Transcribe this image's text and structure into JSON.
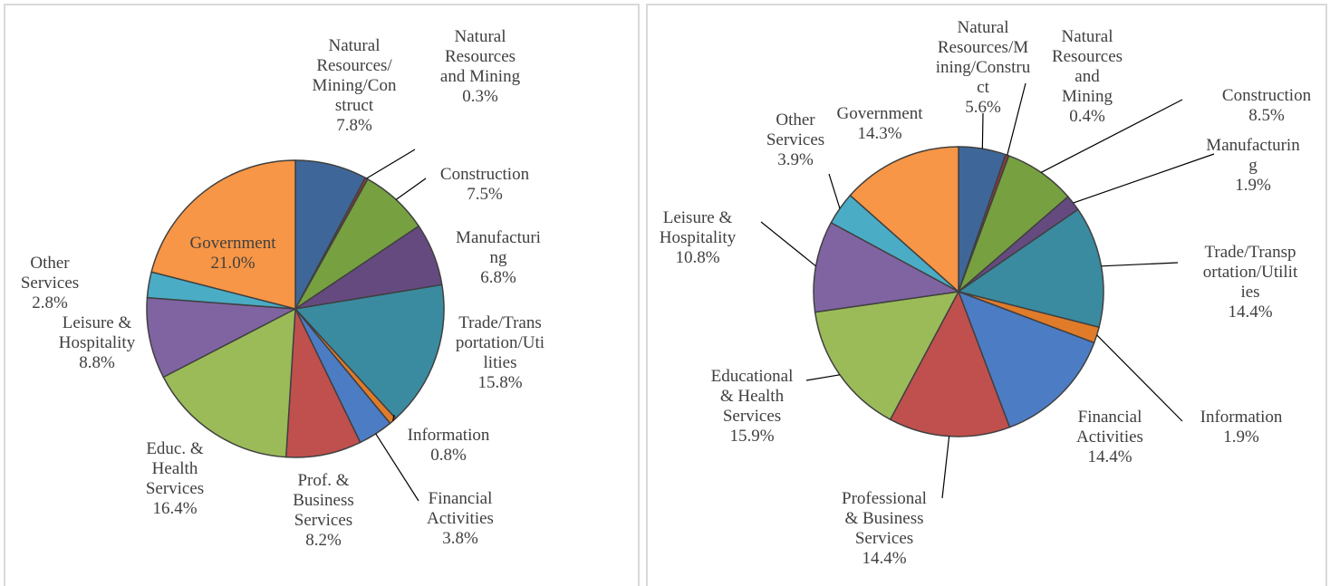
{
  "chart_data": [
    {
      "type": "pie",
      "categories": [
        "Natural\nResources/\nMining/Con\nstruct",
        "Natural\nResources\nand Mining",
        "Construction",
        "Manufacturi\nng",
        "Trade/Trans\nportation/Uti\nlities",
        "Information",
        "Financial\nActivities",
        "Prof. &\nBusiness\nServices",
        "Educ. &\nHealth\nServices",
        "Leisure &\nHospitality",
        "Other\nServices",
        "Government"
      ],
      "values": [
        7.8,
        0.3,
        7.5,
        6.8,
        15.8,
        0.8,
        3.8,
        8.2,
        16.4,
        8.8,
        2.8,
        21
      ],
      "value_labels": [
        "7.8%",
        "0.3%",
        "7.5%",
        "6.8%",
        "15.8%",
        "0.8%",
        "3.8%",
        "8.2%",
        "16.4%",
        "8.8%",
        "2.8%",
        "21.0%"
      ],
      "colors": [
        "#3f6698",
        "#8b3a3a",
        "#77a040",
        "#654a80",
        "#3a8ba0",
        "#e07b2a",
        "#4c7cc4",
        "#c0504d",
        "#9bbb59",
        "#8064a2",
        "#4bacc6",
        "#f79646"
      ]
    },
    {
      "type": "pie",
      "categories": [
        "Natural\nResources/M\nining/Constru\nct",
        "Natural\nResources\nand\nMining",
        "Construction",
        "Manufacturin\ng",
        "Trade/Transp\nortation/Utilit\nies",
        "Information",
        "Financial\nActivities",
        "Professional\n& Business\nServices",
        "Educational\n& Health\nServices",
        "Leisure &\nHospitality",
        "Other\nServices",
        "Government"
      ],
      "values": [
        5.6,
        0.4,
        8.5,
        1.9,
        14.4,
        1.9,
        14.4,
        14.4,
        15.9,
        10.8,
        3.9,
        14.3
      ],
      "value_labels": [
        "5.6%",
        "0.4%",
        "8.5%",
        "1.9%",
        "14.4%",
        "1.9%",
        "14.4%",
        "14.4%",
        "15.9%",
        "10.8%",
        "3.9%",
        "14.3%"
      ],
      "colors": [
        "#3f6698",
        "#8b3a3a",
        "#77a040",
        "#654a80",
        "#3a8ba0",
        "#e07b2a",
        "#4c7cc4",
        "#c0504d",
        "#9bbb59",
        "#8064a2",
        "#4bacc6",
        "#f79646"
      ]
    }
  ]
}
